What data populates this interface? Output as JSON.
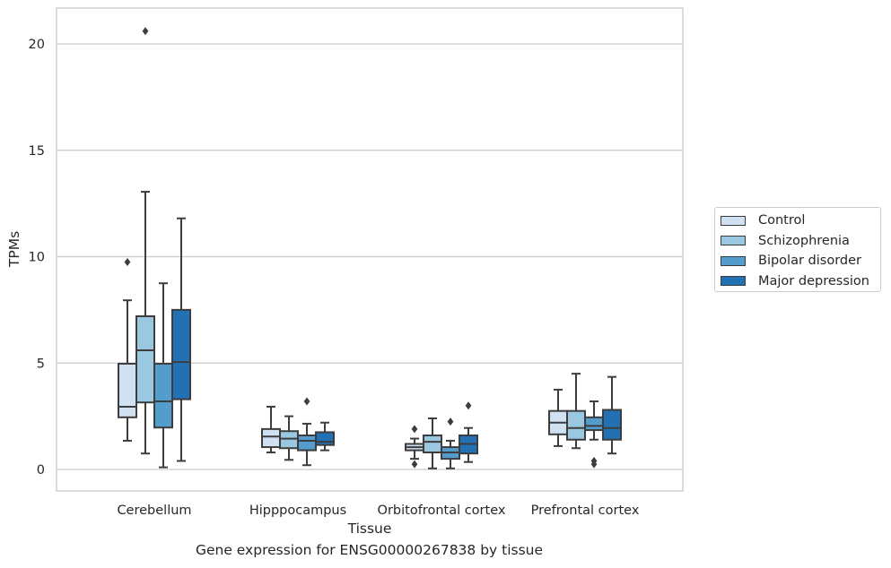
{
  "chart_data": {
    "type": "box",
    "xlabel": "Tissue",
    "ylabel": "TPMs",
    "caption": "Gene expression for ENSG00000267838 by tissue",
    "ylim": [
      -1,
      21.7
    ],
    "yticks": [
      0,
      5,
      10,
      15,
      20
    ],
    "grid": "horizontal",
    "legend_position": "right",
    "categories": [
      "Cerebellum",
      "Hipppocampus",
      "Orbitofrontal cortex",
      "Prefrontal cortex"
    ],
    "series": [
      {
        "name": "Control",
        "color": "#d0e1f2",
        "boxes": [
          {
            "whislo": 1.35,
            "q1": 2.45,
            "med": 2.95,
            "q3": 4.97,
            "whishi": 7.95,
            "fliers": [
              9.75
            ]
          },
          {
            "whislo": 0.8,
            "q1": 1.05,
            "med": 1.55,
            "q3": 1.9,
            "whishi": 2.95,
            "fliers": []
          },
          {
            "whislo": 0.5,
            "q1": 0.9,
            "med": 1.05,
            "q3": 1.2,
            "whishi": 1.45,
            "fliers": [
              1.9,
              0.25
            ]
          },
          {
            "whislo": 1.1,
            "q1": 1.65,
            "med": 2.2,
            "q3": 2.75,
            "whishi": 3.75,
            "fliers": []
          }
        ]
      },
      {
        "name": "Schizophrenia",
        "color": "#9ac8e0",
        "boxes": [
          {
            "whislo": 0.75,
            "q1": 3.15,
            "med": 5.6,
            "q3": 7.2,
            "whishi": 13.05,
            "fliers": [
              20.6
            ]
          },
          {
            "whislo": 0.45,
            "q1": 1.0,
            "med": 1.45,
            "q3": 1.8,
            "whishi": 2.5,
            "fliers": []
          },
          {
            "whislo": 0.05,
            "q1": 0.8,
            "med": 1.3,
            "q3": 1.6,
            "whishi": 2.4,
            "fliers": []
          },
          {
            "whislo": 1.0,
            "q1": 1.4,
            "med": 1.95,
            "q3": 2.75,
            "whishi": 4.5,
            "fliers": []
          }
        ]
      },
      {
        "name": "Bipolar disorder",
        "color": "#529dcc",
        "boxes": [
          {
            "whislo": 0.1,
            "q1": 1.97,
            "med": 3.2,
            "q3": 4.97,
            "whishi": 8.75,
            "fliers": []
          },
          {
            "whislo": 0.2,
            "q1": 0.9,
            "med": 1.35,
            "q3": 1.6,
            "whishi": 2.15,
            "fliers": [
              3.2
            ]
          },
          {
            "whislo": 0.05,
            "q1": 0.5,
            "med": 0.8,
            "q3": 1.05,
            "whishi": 1.35,
            "fliers": [
              2.25
            ]
          },
          {
            "whislo": 1.4,
            "q1": 1.85,
            "med": 2.05,
            "q3": 2.45,
            "whishi": 3.2,
            "fliers": [
              0.4,
              0.25
            ]
          }
        ]
      },
      {
        "name": "Major depression",
        "color": "#2271b5",
        "boxes": [
          {
            "whislo": 0.4,
            "q1": 3.3,
            "med": 5.05,
            "q3": 7.5,
            "whishi": 11.8,
            "fliers": []
          },
          {
            "whislo": 0.9,
            "q1": 1.15,
            "med": 1.3,
            "q3": 1.75,
            "whishi": 2.2,
            "fliers": []
          },
          {
            "whislo": 0.35,
            "q1": 0.75,
            "med": 1.2,
            "q3": 1.6,
            "whishi": 1.95,
            "fliers": [
              3.0
            ]
          },
          {
            "whislo": 0.75,
            "q1": 1.4,
            "med": 1.95,
            "q3": 2.8,
            "whishi": 4.35,
            "fliers": []
          }
        ]
      }
    ]
  }
}
